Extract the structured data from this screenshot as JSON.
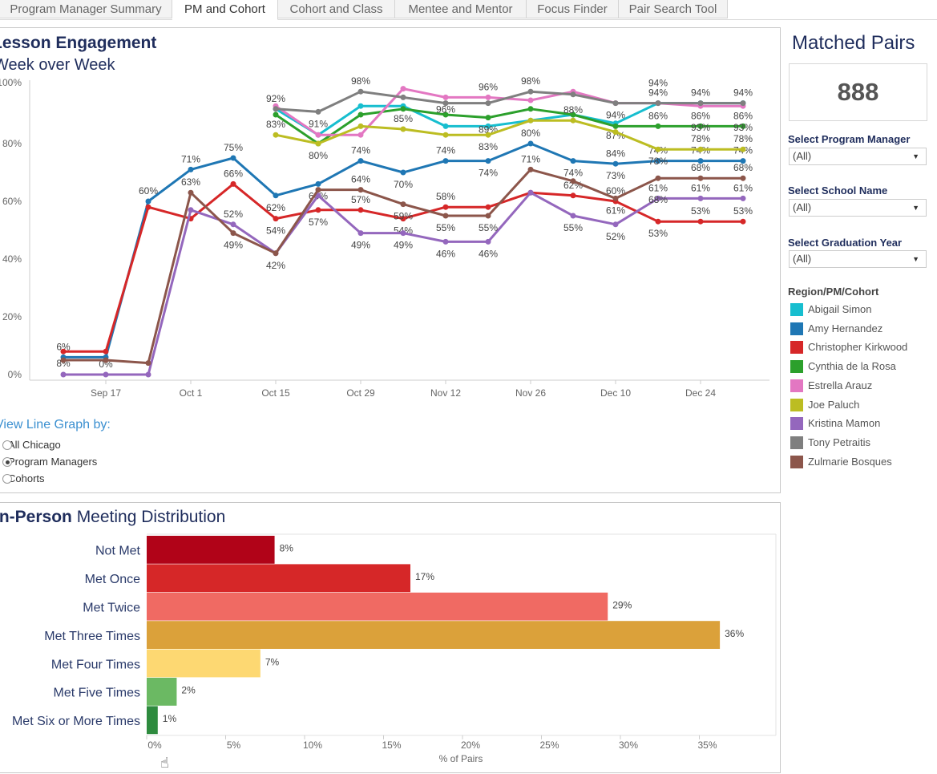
{
  "tabs": [
    {
      "label": "Program Manager Summary",
      "active": false
    },
    {
      "label": "PM and Cohort",
      "active": true
    },
    {
      "label": "Cohort and Class",
      "active": false
    },
    {
      "label": "Mentee and Mentor",
      "active": false
    },
    {
      "label": "Focus Finder",
      "active": false
    },
    {
      "label": "Pair Search Tool",
      "active": false
    }
  ],
  "engagement": {
    "title": "Lesson Engagement",
    "subtitle": "Week over Week",
    "view_by": {
      "label": "View Line Graph by:",
      "options": [
        "All Chicago",
        "Program Managers",
        "Cohorts"
      ],
      "selected": "Program Managers"
    }
  },
  "meetings": {
    "title_bold": "In-Person",
    "title_rest": " Meeting Distribution"
  },
  "sidebar": {
    "matched_pairs_title": "Matched Pairs",
    "matched_pairs_value": "888",
    "filters": [
      {
        "label": "Select Program Manager",
        "value": "(All)"
      },
      {
        "label": "Select School Name",
        "value": "(All)"
      },
      {
        "label": "Select Graduation Year",
        "value": "(All)"
      }
    ],
    "legend_title": "Region/PM/Cohort"
  },
  "chart_data": [
    {
      "type": "line",
      "title": "Lesson Engagement",
      "subtitle": "Week over Week",
      "x": [
        "Sep 10",
        "Sep 17",
        "Sep 24",
        "Oct 1",
        "Oct 8",
        "Oct 15",
        "Oct 22",
        "Oct 29",
        "Nov 5",
        "Nov 12",
        "Nov 19",
        "Nov 26",
        "Dec 3",
        "Dec 10",
        "Dec 17",
        "Dec 24",
        "Dec 31"
      ],
      "x_tick_labels": [
        "Sep 17",
        "Oct 1",
        "Oct 15",
        "Oct 29",
        "Nov 12",
        "Nov 26",
        "Dec 10",
        "Dec 24"
      ],
      "y_tick_labels": [
        "0%",
        "20%",
        "40%",
        "60%",
        "80%",
        "100%"
      ],
      "ylim": [
        0,
        100
      ],
      "grid": false,
      "legend": "right",
      "series": [
        {
          "name": "Abigail Simon",
          "color": "#17becf",
          "values": [
            null,
            null,
            null,
            null,
            null,
            92,
            83,
            93,
            93,
            86,
            86,
            88,
            90,
            87,
            94,
            94,
            94
          ],
          "labels": [
            null,
            null,
            null,
            null,
            null,
            "92%",
            null,
            null,
            null,
            null,
            null,
            null,
            null,
            "87%",
            "94%",
            "94%",
            "94%"
          ]
        },
        {
          "name": "Amy Hernandez",
          "color": "#1f77b4",
          "values": [
            6,
            6,
            60,
            71,
            75,
            62,
            66,
            74,
            70,
            74,
            74,
            80,
            74,
            73,
            74,
            74,
            74
          ],
          "labels": [
            "6%",
            null,
            "60%",
            "71%",
            "75%",
            "62%",
            "66%",
            "74%",
            "70%",
            "74%",
            "74%",
            "80%",
            "74%",
            "73%",
            "74%",
            "74%",
            "74%"
          ]
        },
        {
          "name": "Christopher Kirkwood",
          "color": "#d62728",
          "values": [
            8,
            8,
            58,
            54,
            66,
            54,
            57,
            57,
            54,
            58,
            58,
            63,
            62,
            60,
            53,
            53,
            53
          ],
          "labels": [
            "8%",
            null,
            null,
            null,
            "66%",
            "54%",
            "57%",
            "57%",
            "54%",
            "58%",
            null,
            null,
            "62%",
            "60%",
            "53%",
            "53%",
            "53%"
          ]
        },
        {
          "name": "Cynthia de la Rosa",
          "color": "#2ca02c",
          "values": [
            null,
            null,
            null,
            null,
            null,
            90,
            80,
            90,
            92,
            90,
            89,
            92,
            90,
            86,
            86,
            86,
            86
          ],
          "labels": [
            null,
            null,
            null,
            null,
            null,
            null,
            "80%",
            null,
            null,
            null,
            "89%",
            null,
            null,
            null,
            "86%",
            "86%",
            "86%"
          ]
        },
        {
          "name": "Estrella Arauz",
          "color": "#e377c2",
          "values": [
            null,
            null,
            null,
            null,
            null,
            93,
            83,
            83,
            99,
            96,
            96,
            95,
            98,
            94,
            94,
            93,
            93
          ],
          "labels": [
            null,
            null,
            null,
            null,
            null,
            null,
            null,
            null,
            null,
            "96%",
            "96%",
            null,
            null,
            "94%",
            "94%",
            "93%",
            "93%"
          ]
        },
        {
          "name": "Joe Paluch",
          "color": "#bcbd22",
          "values": [
            null,
            null,
            null,
            null,
            null,
            83,
            80,
            86,
            85,
            83,
            83,
            88,
            88,
            84,
            78,
            78,
            78
          ],
          "labels": [
            null,
            null,
            null,
            null,
            null,
            "83%",
            null,
            null,
            "85%",
            null,
            "83%",
            null,
            "88%",
            "84%",
            "78%",
            "78%",
            "78%"
          ]
        },
        {
          "name": "Kristina Mamon",
          "color": "#9467bd",
          "values": [
            0,
            0,
            0,
            57,
            52,
            42,
            62,
            49,
            49,
            46,
            46,
            63,
            55,
            52,
            61,
            61,
            61
          ],
          "labels": [
            null,
            "0%",
            null,
            null,
            "52%",
            "42%",
            null,
            "49%",
            "49%",
            "46%",
            "46%",
            null,
            "55%",
            "52%",
            "61%",
            "61%",
            "61%"
          ]
        },
        {
          "name": "Tony Petraitis",
          "color": "#7f7f7f",
          "values": [
            null,
            null,
            null,
            null,
            null,
            92,
            91,
            98,
            96,
            94,
            94,
            98,
            97,
            94,
            94,
            94,
            94
          ],
          "labels": [
            null,
            null,
            null,
            null,
            null,
            null,
            "91%",
            "98%",
            null,
            null,
            null,
            "98%",
            null,
            null,
            null,
            null,
            null
          ]
        },
        {
          "name": "Zulmarie Bosques",
          "color": "#8c564b",
          "values": [
            5,
            5,
            4,
            63,
            49,
            42,
            64,
            64,
            59,
            55,
            55,
            71,
            67,
            61,
            68,
            68,
            68
          ],
          "labels": [
            null,
            null,
            null,
            "63%",
            "49%",
            null,
            null,
            "64%",
            "59%",
            "55%",
            "55%",
            "71%",
            null,
            "61%",
            "68%",
            "68%",
            "68%"
          ]
        }
      ]
    },
    {
      "type": "bar",
      "orientation": "horizontal",
      "title": "In-Person Meeting Distribution",
      "categories": [
        "Not Met",
        "Met Once",
        "Met Twice",
        "Met Three Times",
        "Met Four Times",
        "Met Five Times",
        "Met Six or More Times"
      ],
      "values": [
        8.1,
        16.7,
        29.2,
        36.3,
        7.2,
        1.9,
        0.7
      ],
      "labels": [
        "8%",
        "17%",
        "29%",
        "36%",
        "7%",
        "2%",
        "1%"
      ],
      "colors": [
        "#b10318",
        "#d62728",
        "#f06a63",
        "#dba13a",
        "#fdd872",
        "#6bb963",
        "#2e8b3e"
      ],
      "xlabel": "% of Pairs",
      "x_tick_labels": [
        "0%",
        "5%",
        "10%",
        "15%",
        "20%",
        "25%",
        "30%",
        "35%"
      ],
      "xlim": [
        0,
        40
      ],
      "grid": false
    }
  ]
}
